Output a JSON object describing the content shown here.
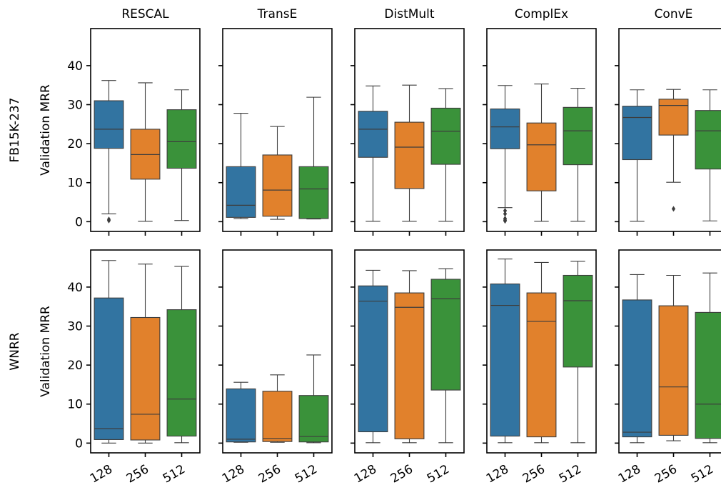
{
  "chart_data": {
    "type": "box",
    "columns": [
      "RESCAL",
      "TransE",
      "DistMult",
      "ComplEx",
      "ConvE"
    ],
    "rows": [
      "FB15K-237",
      "WNRR"
    ],
    "ylabel": "Validation MRR",
    "yticks": [
      0,
      10,
      20,
      30,
      40
    ],
    "ylim": [
      -2.5,
      49.5
    ],
    "categories": [
      "128",
      "256",
      "512"
    ],
    "colors": [
      "#3274a1",
      "#e1812c",
      "#3a923a"
    ],
    "panels": [
      {
        "row": "FB15K-237",
        "method": "RESCAL",
        "boxes": [
          {
            "category": "128",
            "min": 2.0,
            "q1": 18.8,
            "median": 23.7,
            "q3": 31.0,
            "max": 36.2,
            "outliers": [
              0.3,
              0.6
            ]
          },
          {
            "category": "256",
            "min": 0.1,
            "q1": 10.9,
            "median": 17.2,
            "q3": 23.7,
            "max": 35.6,
            "outliers": []
          },
          {
            "category": "512",
            "min": 0.3,
            "q1": 13.7,
            "median": 20.5,
            "q3": 28.7,
            "max": 33.8,
            "outliers": []
          }
        ]
      },
      {
        "row": "FB15K-237",
        "method": "TransE",
        "boxes": [
          {
            "category": "128",
            "min": 0.8,
            "q1": 1.1,
            "median": 4.2,
            "q3": 14.1,
            "max": 27.8,
            "outliers": []
          },
          {
            "category": "256",
            "min": 0.6,
            "q1": 1.4,
            "median": 8.1,
            "q3": 17.1,
            "max": 24.4,
            "outliers": []
          },
          {
            "category": "512",
            "min": 0.7,
            "q1": 0.8,
            "median": 8.4,
            "q3": 14.1,
            "max": 31.9,
            "outliers": []
          }
        ]
      },
      {
        "row": "FB15K-237",
        "method": "DistMult",
        "boxes": [
          {
            "category": "128",
            "min": 0.1,
            "q1": 16.5,
            "median": 23.7,
            "q3": 28.3,
            "max": 34.8,
            "outliers": []
          },
          {
            "category": "256",
            "min": 0.1,
            "q1": 8.5,
            "median": 19.1,
            "q3": 25.5,
            "max": 35.0,
            "outliers": []
          },
          {
            "category": "512",
            "min": 0.1,
            "q1": 14.7,
            "median": 23.2,
            "q3": 29.1,
            "max": 34.1,
            "outliers": []
          }
        ]
      },
      {
        "row": "FB15K-237",
        "method": "ComplEx",
        "boxes": [
          {
            "category": "128",
            "min": 3.6,
            "q1": 18.7,
            "median": 24.3,
            "q3": 28.9,
            "max": 34.9,
            "outliers": [
              0.2,
              0.4,
              0.8,
              2.0,
              2.8
            ]
          },
          {
            "category": "256",
            "min": 0.1,
            "q1": 7.9,
            "median": 19.7,
            "q3": 25.3,
            "max": 35.3,
            "outliers": []
          },
          {
            "category": "512",
            "min": 0.1,
            "q1": 14.6,
            "median": 23.3,
            "q3": 29.3,
            "max": 34.2,
            "outliers": []
          }
        ]
      },
      {
        "row": "FB15K-237",
        "method": "ConvE",
        "boxes": [
          {
            "category": "128",
            "min": 0.1,
            "q1": 15.9,
            "median": 26.7,
            "q3": 29.6,
            "max": 33.8,
            "outliers": []
          },
          {
            "category": "256",
            "min": 10.1,
            "q1": 22.2,
            "median": 29.8,
            "q3": 31.4,
            "max": 33.9,
            "outliers": [
              3.3
            ]
          },
          {
            "category": "512",
            "min": 0.2,
            "q1": 13.5,
            "median": 23.3,
            "q3": 28.5,
            "max": 33.8,
            "outliers": []
          }
        ]
      },
      {
        "row": "WNRR",
        "method": "RESCAL",
        "boxes": [
          {
            "category": "128",
            "min": 0.0,
            "q1": 0.9,
            "median": 3.7,
            "q3": 37.2,
            "max": 46.8,
            "outliers": []
          },
          {
            "category": "256",
            "min": 0.0,
            "q1": 0.8,
            "median": 7.4,
            "q3": 32.2,
            "max": 45.9,
            "outliers": []
          },
          {
            "category": "512",
            "min": 0.1,
            "q1": 1.8,
            "median": 11.3,
            "q3": 34.2,
            "max": 45.3,
            "outliers": []
          }
        ]
      },
      {
        "row": "WNRR",
        "method": "TransE",
        "boxes": [
          {
            "category": "128",
            "min": 0.2,
            "q1": 0.3,
            "median": 1.0,
            "q3": 13.9,
            "max": 15.6,
            "outliers": []
          },
          {
            "category": "256",
            "min": 0.2,
            "q1": 0.4,
            "median": 1.2,
            "q3": 13.3,
            "max": 17.5,
            "outliers": []
          },
          {
            "category": "512",
            "min": 0.1,
            "q1": 0.3,
            "median": 1.7,
            "q3": 12.2,
            "max": 22.6,
            "outliers": []
          }
        ]
      },
      {
        "row": "WNRR",
        "method": "DistMult",
        "boxes": [
          {
            "category": "128",
            "min": 0.1,
            "q1": 2.9,
            "median": 36.4,
            "q3": 40.3,
            "max": 44.3,
            "outliers": []
          },
          {
            "category": "256",
            "min": 0.1,
            "q1": 1.1,
            "median": 34.8,
            "q3": 38.5,
            "max": 44.2,
            "outliers": []
          },
          {
            "category": "512",
            "min": 0.1,
            "q1": 13.6,
            "median": 37.0,
            "q3": 42.0,
            "max": 44.7,
            "outliers": []
          }
        ]
      },
      {
        "row": "WNRR",
        "method": "ComplEx",
        "boxes": [
          {
            "category": "128",
            "min": 0.1,
            "q1": 1.8,
            "median": 35.3,
            "q3": 40.8,
            "max": 47.2,
            "outliers": []
          },
          {
            "category": "256",
            "min": 0.1,
            "q1": 1.6,
            "median": 31.2,
            "q3": 38.5,
            "max": 46.3,
            "outliers": []
          },
          {
            "category": "512",
            "min": 0.1,
            "q1": 19.5,
            "median": 36.5,
            "q3": 43.0,
            "max": 46.6,
            "outliers": []
          }
        ]
      },
      {
        "row": "WNRR",
        "method": "ConvE",
        "boxes": [
          {
            "category": "128",
            "min": 0.1,
            "q1": 1.6,
            "median": 2.8,
            "q3": 36.7,
            "max": 43.2,
            "outliers": []
          },
          {
            "category": "256",
            "min": 0.6,
            "q1": 2.0,
            "median": 14.4,
            "q3": 35.2,
            "max": 43.0,
            "outliers": []
          },
          {
            "category": "512",
            "min": 0.1,
            "q1": 1.2,
            "median": 10.0,
            "q3": 33.5,
            "max": 43.6,
            "outliers": []
          }
        ]
      }
    ]
  }
}
